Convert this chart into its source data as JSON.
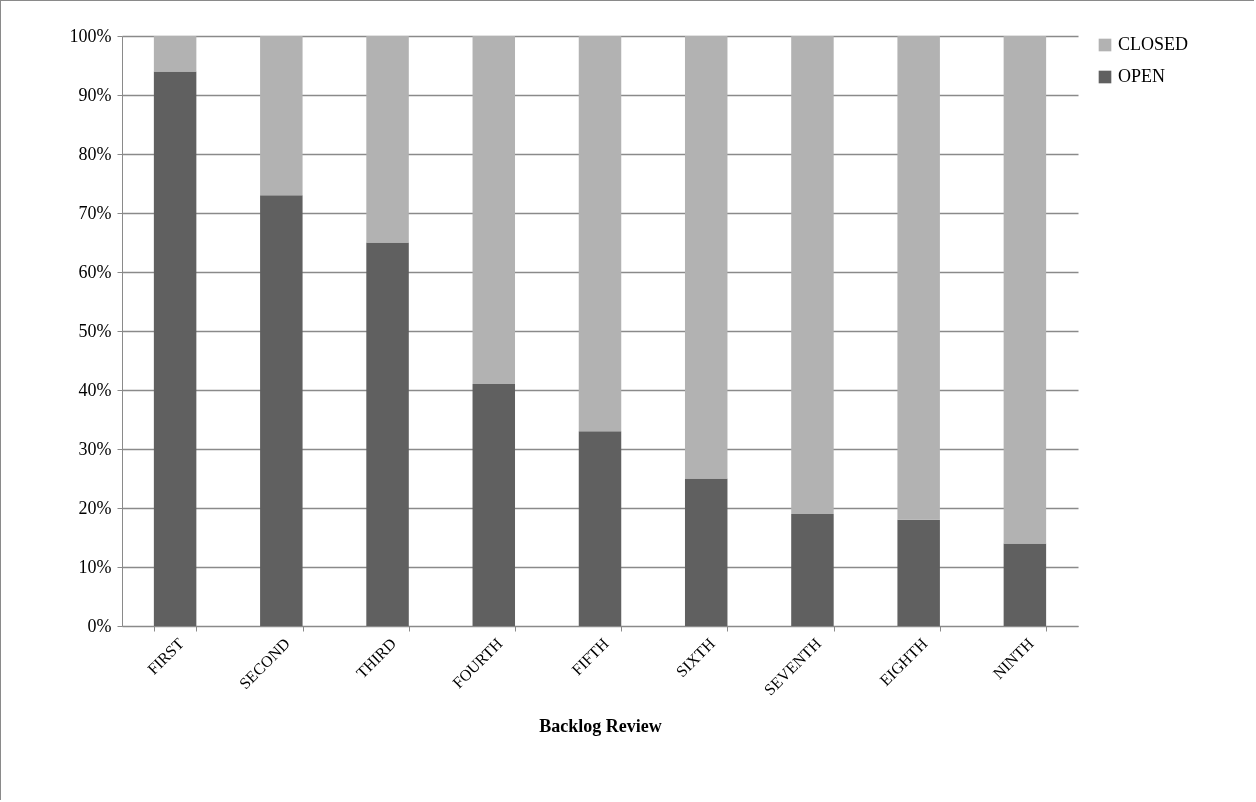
{
  "chart_data": {
    "type": "bar",
    "stacked": true,
    "xlabel": "Backlog Review",
    "categories": [
      "FIRST",
      "SECOND",
      "THIRD",
      "FOURTH",
      "FIFTH",
      "SIXTH",
      "SEVENTH",
      "EIGHTH",
      "NINTH"
    ],
    "series": [
      {
        "name": "OPEN",
        "color": "#606060",
        "values": [
          94,
          73,
          65,
          41,
          33,
          25,
          19,
          18,
          14
        ]
      },
      {
        "name": "CLOSED",
        "color": "#b2b2b2",
        "values": [
          6,
          27,
          35,
          59,
          67,
          75,
          81,
          82,
          86
        ]
      }
    ],
    "ylim": [
      0,
      100
    ],
    "yticks": [
      {
        "value": 0,
        "label": "0%"
      },
      {
        "value": 10,
        "label": "10%"
      },
      {
        "value": 20,
        "label": "20%"
      },
      {
        "value": 30,
        "label": "30%"
      },
      {
        "value": 40,
        "label": "40%"
      },
      {
        "value": 50,
        "label": "50%"
      },
      {
        "value": 60,
        "label": "60%"
      },
      {
        "value": 70,
        "label": "70%"
      },
      {
        "value": 80,
        "label": "80%"
      },
      {
        "value": 90,
        "label": "90%"
      },
      {
        "value": 100,
        "label": "100%"
      }
    ],
    "grid": "y",
    "legend": "right"
  }
}
